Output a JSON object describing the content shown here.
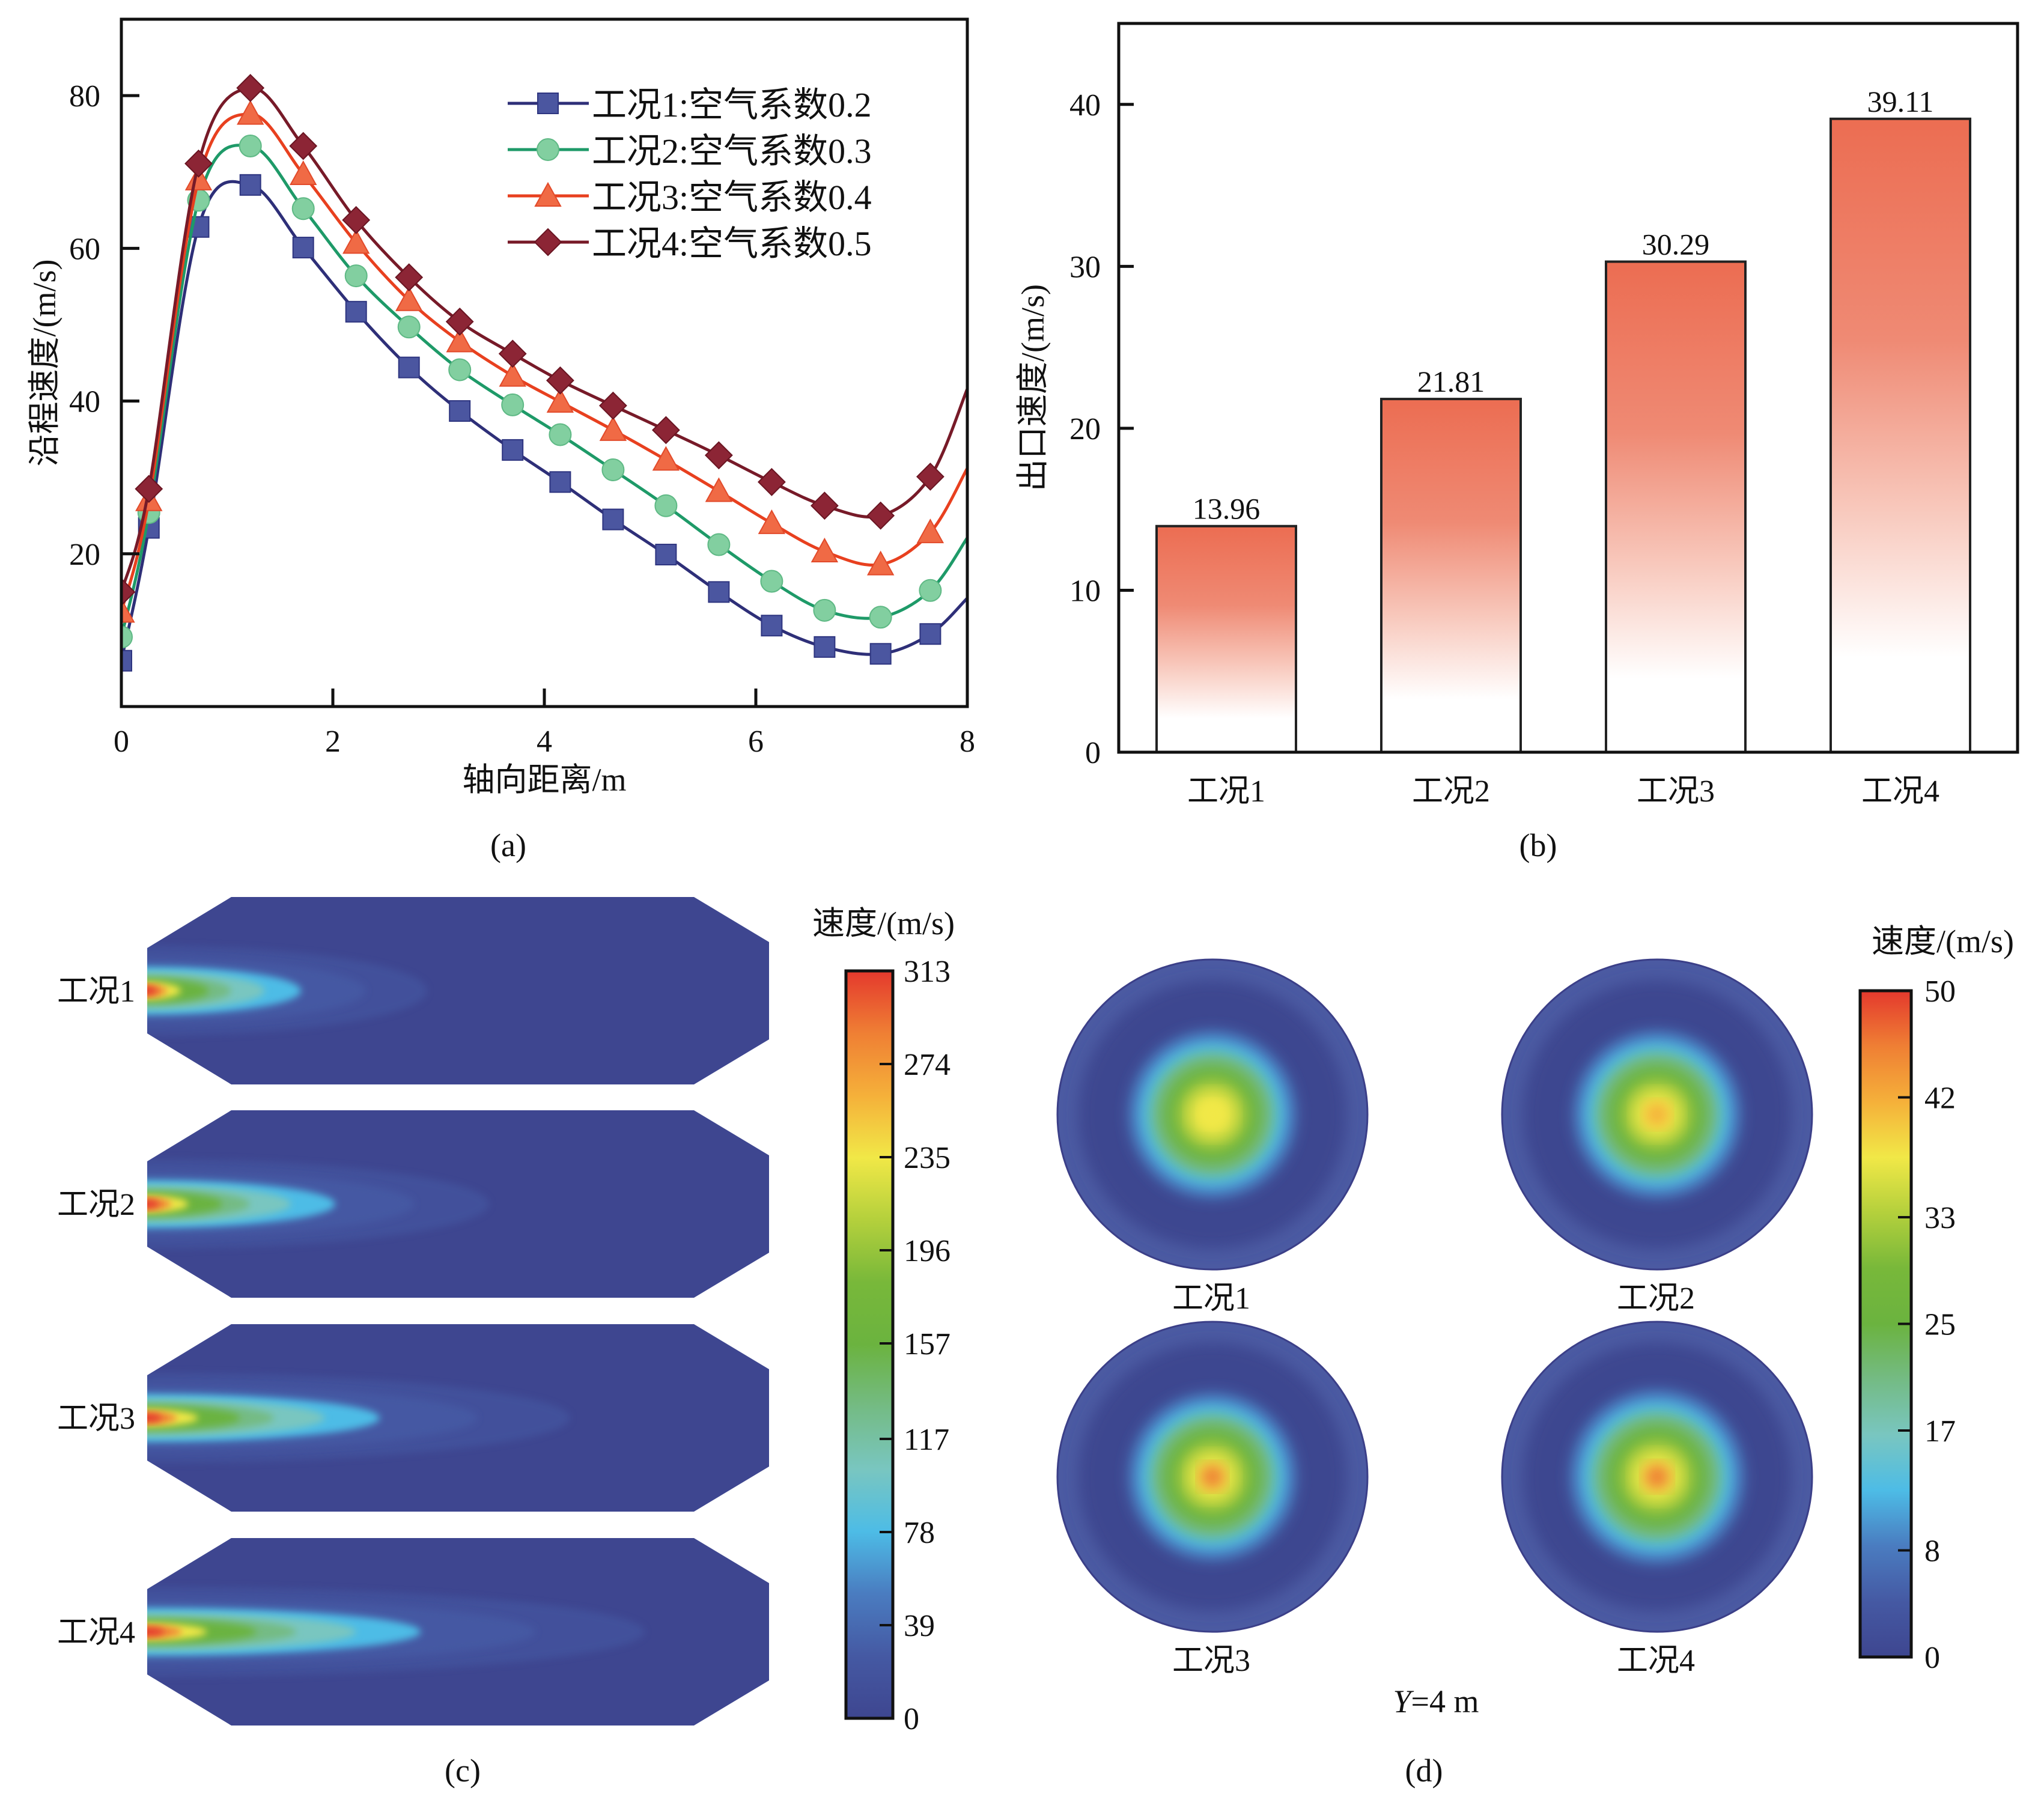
{
  "chart_data": [
    {
      "panel": "a",
      "type": "line",
      "title": "",
      "caption": "(a)",
      "xlabel": "轴向距离/m",
      "ylabel": "沿程速度/(m/s)",
      "xlim": [
        0,
        8
      ],
      "ylim": [
        0,
        90
      ],
      "xticks": [
        "0",
        "2",
        "4",
        "6",
        "8"
      ],
      "yticks": [
        "20",
        "40",
        "60",
        "80"
      ],
      "grid": false,
      "legend_position": "top-right",
      "x": [
        0,
        0.26,
        0.73,
        1.22,
        1.72,
        2.22,
        2.72,
        3.2,
        3.7,
        4.15,
        4.65,
        5.15,
        5.65,
        6.15,
        6.65,
        7.18,
        7.65
      ],
      "curve_end": {
        "x": 8
      },
      "series": [
        {
          "name": "工况1:空气系数0.2",
          "marker": "square",
          "line_color": "#2e2f78",
          "marker_color": "#4b56a0",
          "values": [
            6.0,
            23.4,
            62.8,
            68.3,
            60.1,
            51.7,
            44.4,
            38.7,
            33.6,
            29.4,
            24.5,
            19.9,
            15.0,
            10.6,
            7.8,
            6.9,
            9.5
          ],
          "end_value": 14.2
        },
        {
          "name": "工况2:空气系数0.3",
          "marker": "circle",
          "line_color": "#1e9a68",
          "marker_color": "#82cfa0",
          "values": [
            9.1,
            25.4,
            66.3,
            73.4,
            65.2,
            56.4,
            49.7,
            44.1,
            39.5,
            35.6,
            31.0,
            26.3,
            21.2,
            16.4,
            12.6,
            11.7,
            15.2
          ],
          "end_value": 22.1
        },
        {
          "name": "工况3:空气系数0.4",
          "marker": "triangle",
          "line_color": "#e8401f",
          "marker_color": "#f06a45",
          "values": [
            12.4,
            27.0,
            69.0,
            77.6,
            69.7,
            60.7,
            53.2,
            47.8,
            43.3,
            39.9,
            36.2,
            32.3,
            28.2,
            24.0,
            20.3,
            18.6,
            22.8
          ],
          "end_value": 31.2
        },
        {
          "name": "工况4:空气系数0.5",
          "marker": "diamond",
          "line_color": "#771a28",
          "marker_color": "#8c2535",
          "values": [
            15.0,
            28.5,
            71.1,
            81.0,
            73.4,
            63.7,
            56.2,
            50.4,
            46.2,
            42.7,
            39.4,
            36.2,
            32.9,
            29.4,
            26.3,
            25.0,
            30.1
          ],
          "end_value": 41.6
        }
      ]
    },
    {
      "panel": "b",
      "type": "bar",
      "title": "",
      "caption": "(b)",
      "xlabel": "",
      "ylabel": "出口速度/(m/s)",
      "categories": [
        "工况1",
        "工况2",
        "工况3",
        "工况4"
      ],
      "values": [
        13.96,
        21.81,
        30.29,
        39.11
      ],
      "data_labels": [
        "13.96",
        "21.81",
        "30.29",
        "39.11"
      ],
      "ylim": [
        0,
        45
      ],
      "yticks": [
        "0",
        "10",
        "20",
        "30",
        "40"
      ],
      "grid": false,
      "bar_color_top": "#ec6d52",
      "bar_color_bottom": "#ffffff"
    },
    {
      "panel": "c",
      "type": "heatmap",
      "caption": "(c)",
      "description": "Axial velocity contour in longitudinal section",
      "cases": [
        "工况1",
        "工况2",
        "工况3",
        "工况4"
      ],
      "jet_reach": [
        0.45,
        0.55,
        0.68,
        0.8
      ],
      "colorbar": {
        "title": "速度/(m/s)",
        "min": 0,
        "max": 313,
        "ticks": [
          "313",
          "274",
          "235",
          "196",
          "157",
          "117",
          "78",
          "39",
          "0"
        ]
      }
    },
    {
      "panel": "d",
      "type": "heatmap",
      "caption": "(d)",
      "description": "Cross-section velocity contour",
      "section_label": "Y=4 m",
      "section_label_var": "Y",
      "section_label_rest": "=4 m",
      "cases": [
        "工况1",
        "工况2",
        "工况3",
        "工况4"
      ],
      "center_values": [
        36,
        41,
        46,
        49
      ],
      "colorbar": {
        "title": "速度/(m/s)",
        "min": 0,
        "max": 50,
        "ticks": [
          "50",
          "42",
          "33",
          "25",
          "17",
          "8",
          "0"
        ]
      }
    }
  ],
  "colormap": [
    "#3e4690",
    "#4559a3",
    "#4a7cc0",
    "#4dbce6",
    "#79c6c0",
    "#74bb84",
    "#6bb33f",
    "#78b83a",
    "#b4d03c",
    "#f1e847",
    "#f5b03a",
    "#ef7f34",
    "#e4392d"
  ]
}
